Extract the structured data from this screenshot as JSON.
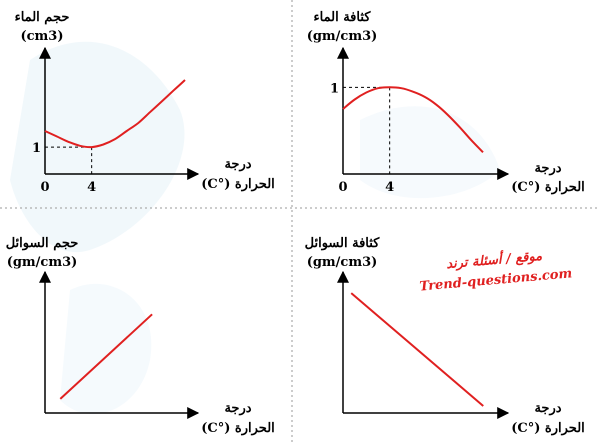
{
  "colors": {
    "curve": "#e02020",
    "axis": "#000000",
    "divider": "#9a9a9a",
    "watermark_bg": "#e8f3f9"
  },
  "watermark": {
    "line1": "موقع / أسئلة ترند",
    "line2": "Trend-questions.com",
    "color": "#e02020"
  },
  "chart_data": [
    {
      "type": "line",
      "ylabel": "حجم الماء",
      "unit": "(cm3)",
      "xlabel_line1": "درجة",
      "xlabel_line2": "الحرارة (°C)",
      "xticks": [
        "0",
        "4"
      ],
      "yticks": [
        "1"
      ],
      "xlim": [
        0,
        12
      ],
      "ylim": [
        0.9,
        1.25
      ],
      "marker": {
        "x": 4,
        "y": 1
      },
      "x": [
        0,
        1,
        2,
        3,
        4,
        5,
        6,
        7,
        8,
        9,
        10,
        11,
        12
      ],
      "values": [
        1.06,
        1.04,
        1.02,
        1.005,
        1.0,
        1.01,
        1.03,
        1.06,
        1.09,
        1.13,
        1.17,
        1.21,
        1.25
      ]
    },
    {
      "type": "line",
      "ylabel": "كثافة الماء",
      "unit": "(gm/cm3)",
      "xlabel_line1": "درجة",
      "xlabel_line2": "الحرارة (°C)",
      "xticks": [
        "0",
        "4"
      ],
      "yticks": [
        "1"
      ],
      "xlim": [
        0,
        12
      ],
      "ylim": [
        0,
        1.2
      ],
      "marker": {
        "x": 4,
        "y": 1
      },
      "x": [
        0,
        1,
        2,
        3,
        4,
        5,
        6,
        7,
        8,
        9,
        10,
        11,
        12
      ],
      "values": [
        0.75,
        0.86,
        0.94,
        0.99,
        1.0,
        0.99,
        0.95,
        0.89,
        0.8,
        0.68,
        0.54,
        0.39,
        0.25
      ]
    },
    {
      "type": "line",
      "ylabel": "حجم السوائل",
      "unit": "(gm/cm3)",
      "xlabel_line1": "درجة",
      "xlabel_line2": "الحرارة (°C)",
      "xticks": [],
      "yticks": [],
      "xlim": [
        0,
        10
      ],
      "ylim": [
        0,
        10
      ],
      "x": [
        1,
        7
      ],
      "values": [
        1,
        7
      ]
    },
    {
      "type": "line",
      "ylabel": "كثافة السوائل",
      "unit": "(gm/cm3)",
      "xlabel_line1": "درجة",
      "xlabel_line2": "الحرارة (°C)",
      "xticks": [],
      "yticks": [],
      "xlim": [
        0,
        10
      ],
      "ylim": [
        0,
        10
      ],
      "x": [
        0.5,
        8.5
      ],
      "values": [
        8.5,
        0.5
      ]
    }
  ]
}
